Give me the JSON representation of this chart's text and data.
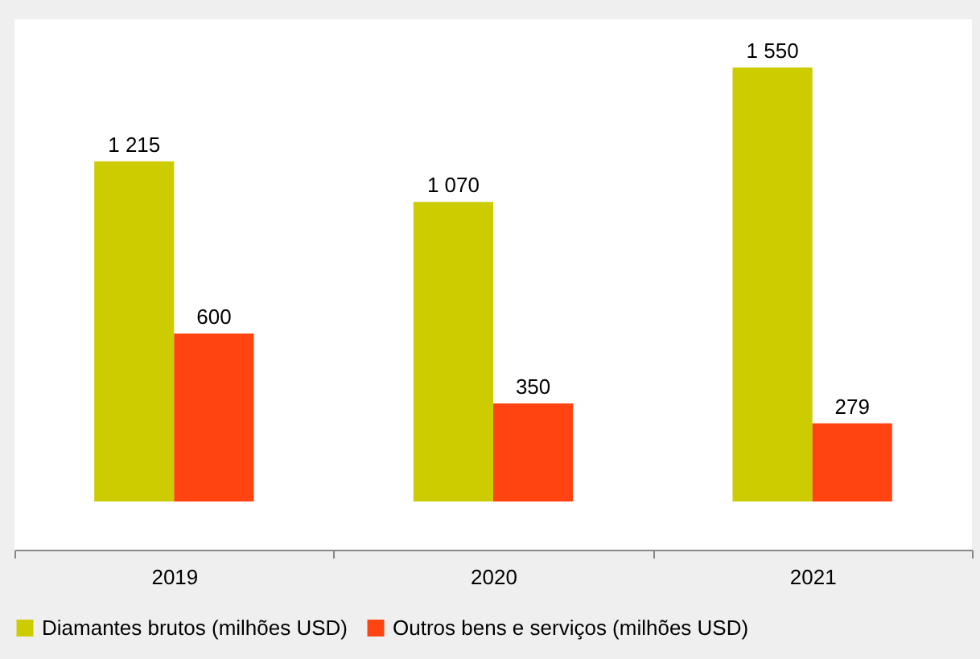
{
  "chart_data": {
    "type": "bar",
    "categories": [
      "2019",
      "2020",
      "2021"
    ],
    "series": [
      {
        "name": "Diamantes brutos (milhões USD)",
        "color": "#cccc00",
        "values": [
          1215,
          1070,
          1550
        ],
        "value_labels": [
          "1 215",
          "1 070",
          "1 550"
        ]
      },
      {
        "name": "Outros bens e serviços (milhões USD)",
        "color": "#ff4411",
        "values": [
          600,
          350,
          279
        ],
        "value_labels": [
          "600",
          "350",
          "279"
        ]
      }
    ],
    "legend": "bottom",
    "grid": false
  }
}
